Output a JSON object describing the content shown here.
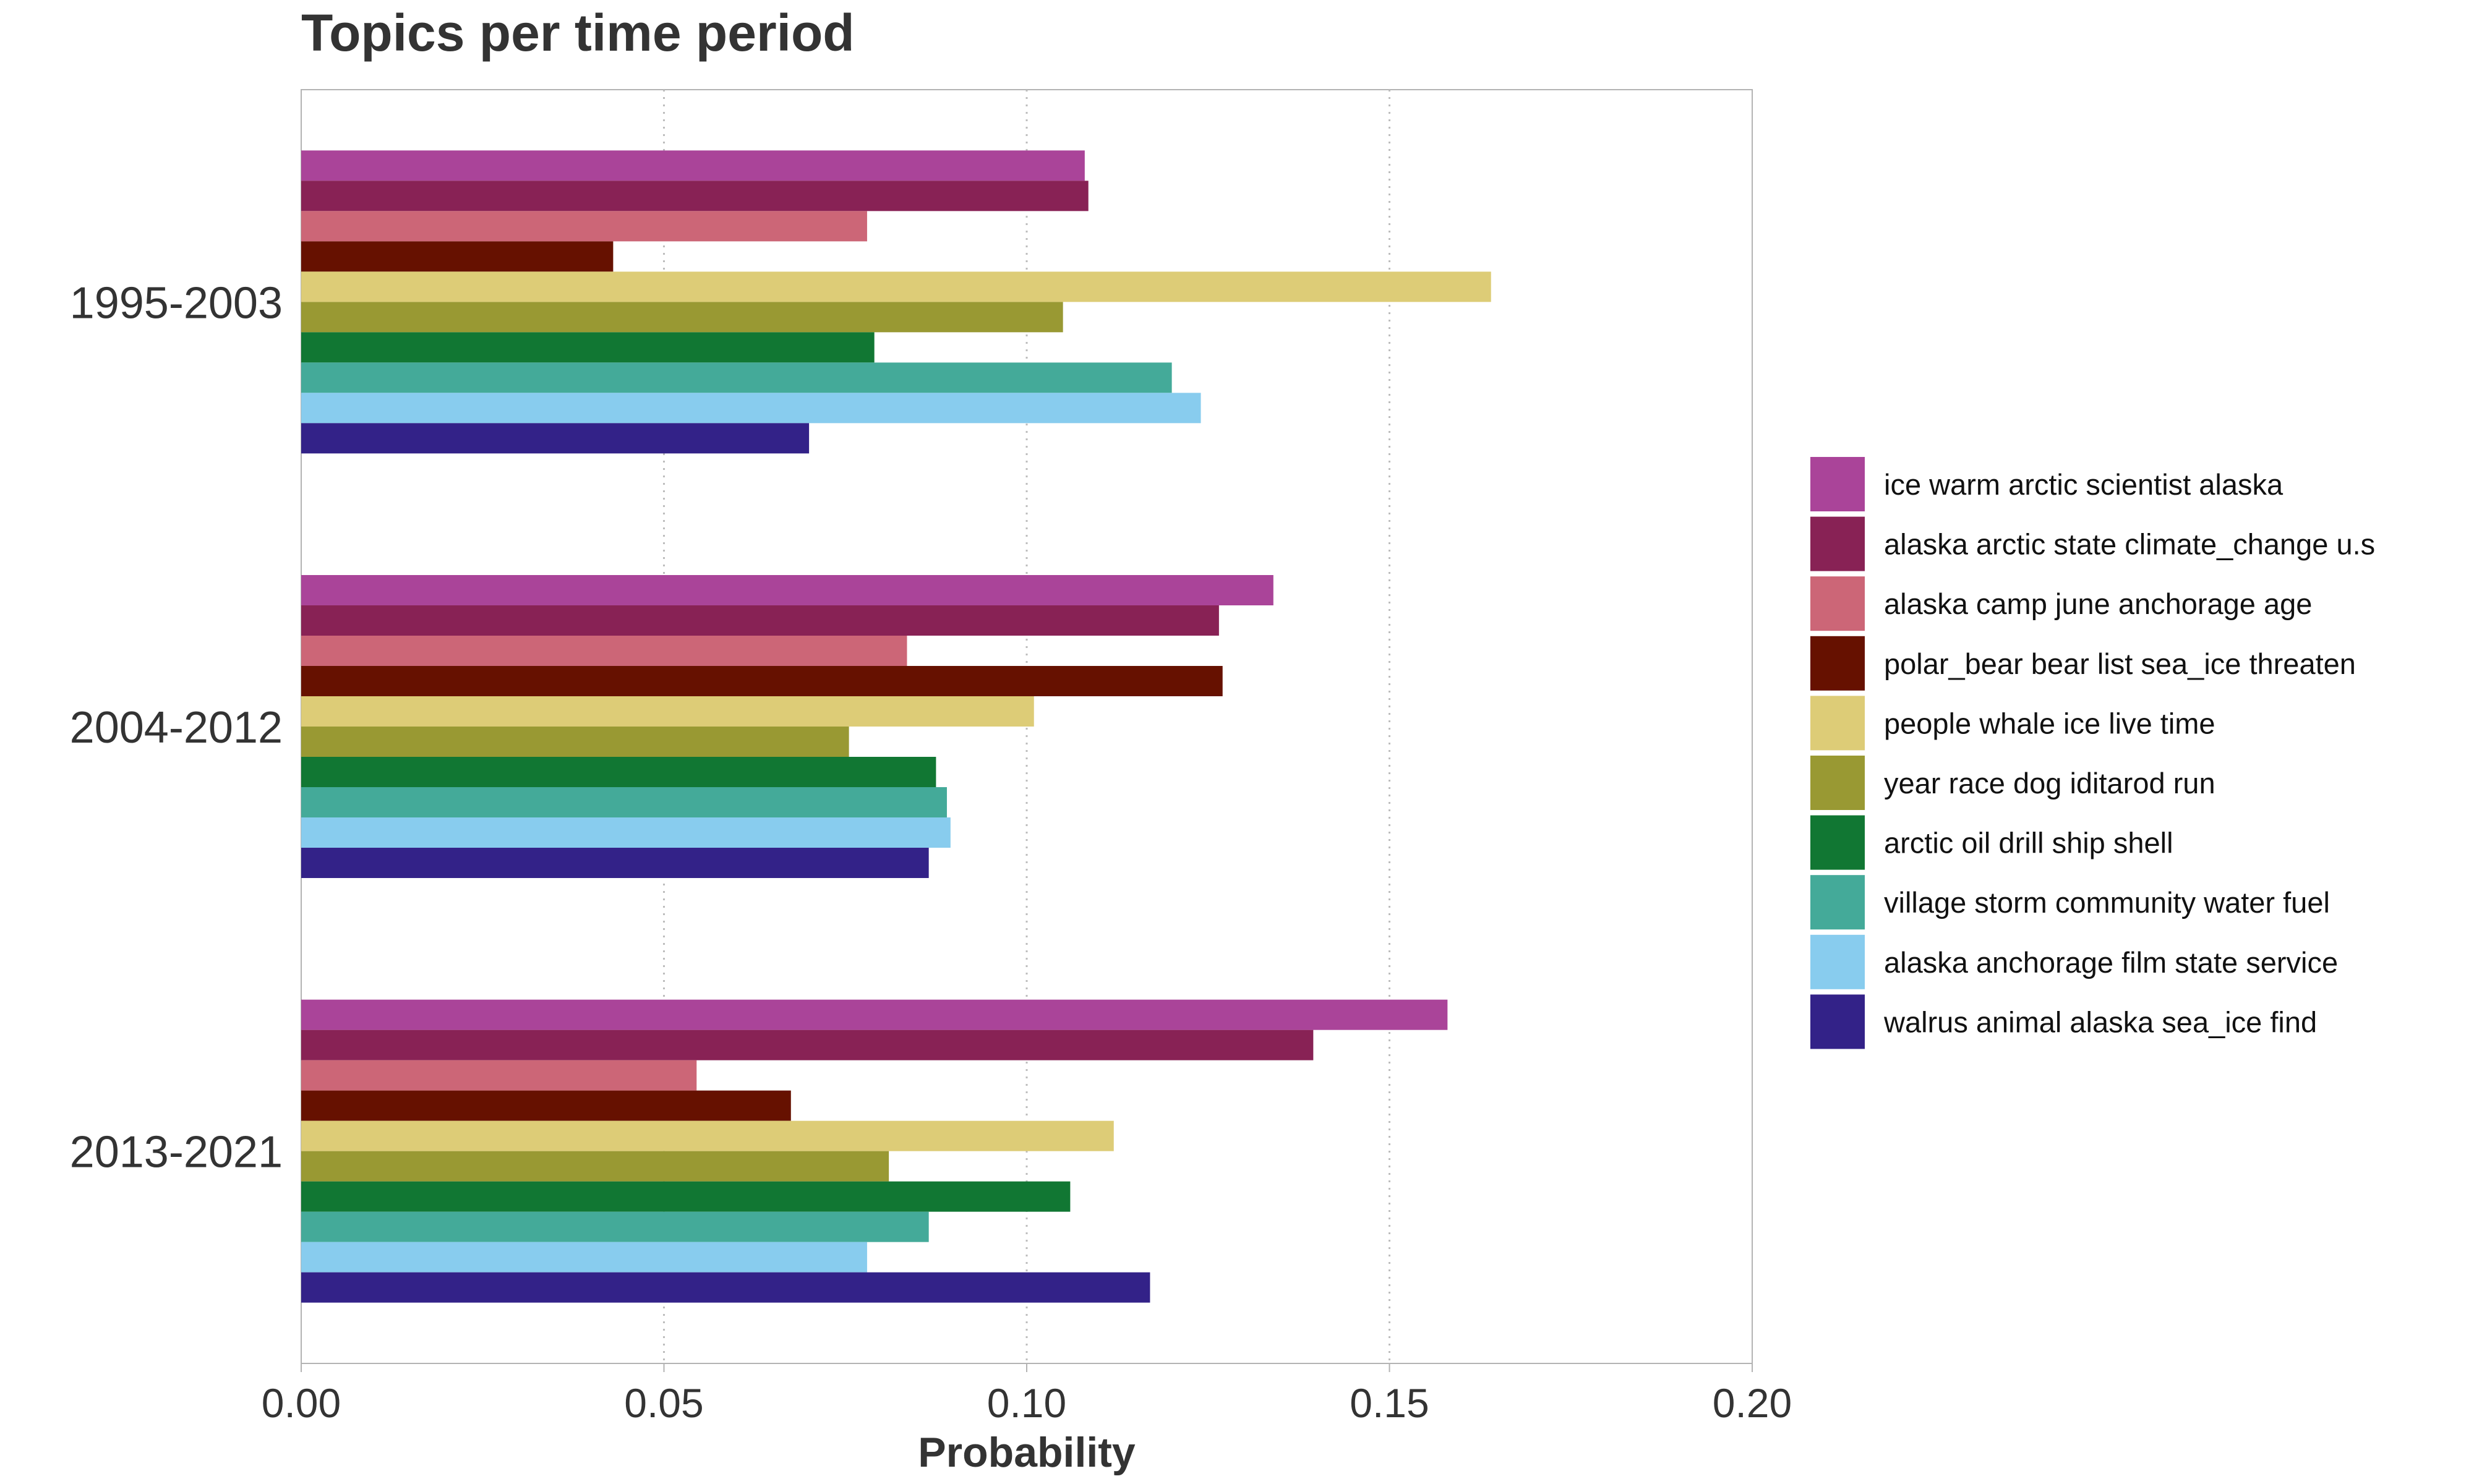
{
  "chart_data": {
    "type": "bar",
    "orientation": "horizontal",
    "title": "Topics per time period",
    "xlabel": "Probability",
    "ylabel": "",
    "xlim": [
      0,
      0.2
    ],
    "xticks": [
      "0.00",
      "0.05",
      "0.10",
      "0.15",
      "0.20"
    ],
    "grid": "vertical dotted",
    "legend_position": "right",
    "categories": [
      "1995-2003",
      "2004-2012",
      "2013-2021"
    ],
    "series": [
      {
        "name": "ice warm arctic scientist alaska",
        "color": "#AA4499",
        "values": [
          0.108,
          0.134,
          0.158
        ]
      },
      {
        "name": "alaska arctic state climate_change u.s",
        "color": "#882255",
        "values": [
          0.1085,
          0.1265,
          0.1395
        ]
      },
      {
        "name": "alaska camp june anchorage age",
        "color": "#CC6677",
        "values": [
          0.078,
          0.0835,
          0.0545
        ]
      },
      {
        "name": "polar_bear bear list sea_ice threaten",
        "color": "#661100",
        "values": [
          0.043,
          0.127,
          0.0675
        ]
      },
      {
        "name": "people whale ice live time",
        "color": "#DDCC77",
        "values": [
          0.164,
          0.101,
          0.112
        ]
      },
      {
        "name": "year race dog iditarod run",
        "color": "#999933",
        "values": [
          0.105,
          0.0755,
          0.081
        ]
      },
      {
        "name": "arctic oil drill ship shell",
        "color": "#117733",
        "values": [
          0.079,
          0.0875,
          0.106
        ]
      },
      {
        "name": "village storm community water fuel",
        "color": "#44AA99",
        "values": [
          0.12,
          0.089,
          0.0865
        ]
      },
      {
        "name": "alaska anchorage film state service",
        "color": "#88CCEE",
        "values": [
          0.124,
          0.0895,
          0.078
        ]
      },
      {
        "name": "walrus animal alaska sea_ice find",
        "color": "#332288",
        "values": [
          0.07,
          0.0865,
          0.117
        ]
      }
    ]
  }
}
